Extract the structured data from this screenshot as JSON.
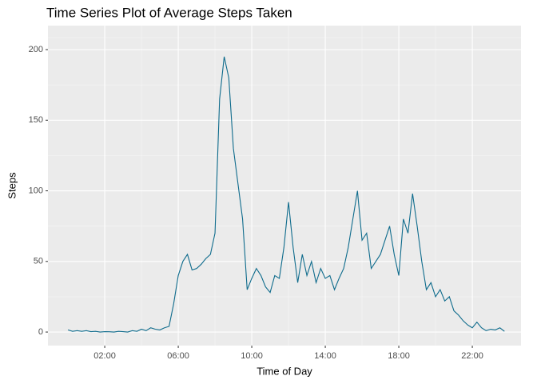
{
  "chart_data": {
    "type": "line",
    "title": "Time Series Plot of Average Steps Taken",
    "x_label": "Time of Day",
    "y_label": "Steps",
    "x": [
      0,
      0.25,
      0.5,
      0.75,
      1,
      1.25,
      1.5,
      1.75,
      2,
      2.25,
      2.5,
      2.75,
      3,
      3.25,
      3.5,
      3.75,
      4,
      4.25,
      4.5,
      4.75,
      5,
      5.25,
      5.5,
      5.75,
      6,
      6.25,
      6.5,
      6.75,
      7,
      7.25,
      7.5,
      7.75,
      8,
      8.25,
      8.5,
      8.75,
      9,
      9.25,
      9.5,
      9.75,
      10,
      10.25,
      10.5,
      10.75,
      11,
      11.25,
      11.5,
      11.75,
      12,
      12.25,
      12.5,
      12.75,
      13,
      13.25,
      13.5,
      13.75,
      14,
      14.25,
      14.5,
      14.75,
      15,
      15.25,
      15.5,
      15.75,
      16,
      16.25,
      16.5,
      16.75,
      17,
      17.25,
      17.5,
      17.75,
      18,
      18.25,
      18.5,
      18.75,
      19,
      19.25,
      19.5,
      19.75,
      20,
      20.25,
      20.5,
      20.75,
      21,
      21.25,
      21.5,
      21.75,
      22,
      22.25,
      22.5,
      22.75,
      23,
      23.25,
      23.5,
      23.75
    ],
    "series": [
      {
        "name": "Steps",
        "color": "#0e6b8c",
        "values": [
          1.5,
          0.5,
          1,
          0.5,
          1,
          0.3,
          0.5,
          0,
          0.3,
          0.2,
          0,
          0.5,
          0.3,
          0,
          1,
          0.5,
          2,
          1,
          3,
          2,
          1.5,
          3,
          4,
          20,
          40,
          50,
          55,
          44,
          45,
          48,
          52,
          55,
          70,
          165,
          195,
          180,
          130,
          105,
          80,
          30,
          38,
          45,
          40,
          32,
          28,
          40,
          38,
          60,
          92,
          60,
          35,
          55,
          40,
          50,
          35,
          45,
          38,
          40,
          30,
          38,
          45,
          60,
          80,
          100,
          65,
          70,
          45,
          50,
          55,
          65,
          75,
          55,
          40,
          80,
          70,
          98,
          75,
          50,
          30,
          35,
          25,
          30,
          22,
          25,
          15,
          12,
          8,
          5,
          3,
          7,
          3,
          1,
          2,
          1.5,
          3,
          0.5
        ]
      }
    ],
    "xlim": [
      -1.09,
      24.65
    ],
    "ylim": [
      -9.6,
      217
    ],
    "xticks": [
      {
        "value": 2,
        "label": "02:00"
      },
      {
        "value": 6,
        "label": "06:00"
      },
      {
        "value": 10,
        "label": "10:00"
      },
      {
        "value": 14,
        "label": "14:00"
      },
      {
        "value": 18,
        "label": "18:00"
      },
      {
        "value": 22,
        "label": "22:00"
      }
    ],
    "yticks": [
      0,
      50,
      100,
      150,
      200
    ],
    "grid": true
  }
}
